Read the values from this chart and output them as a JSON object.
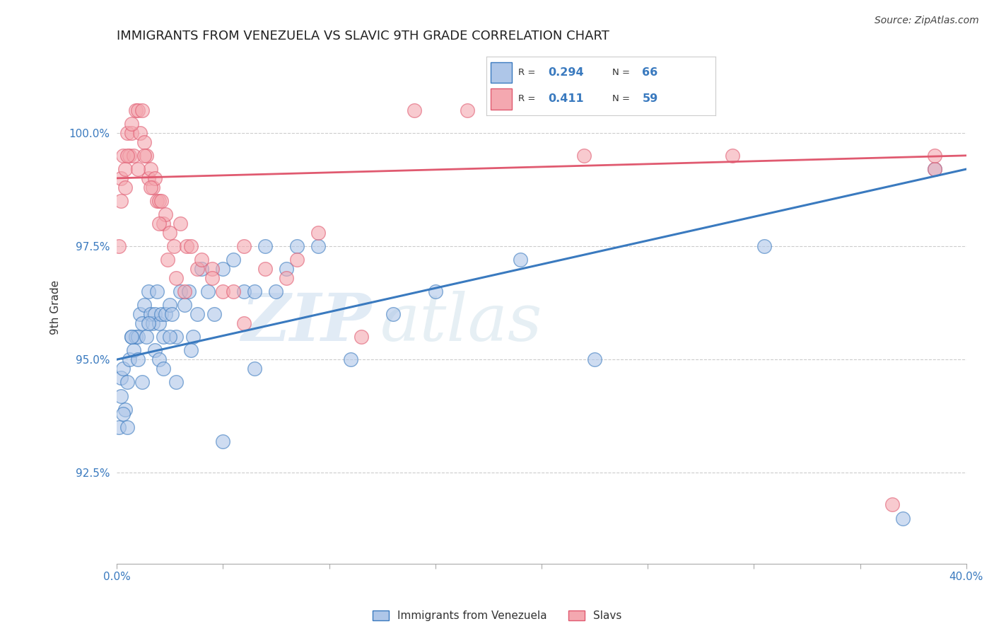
{
  "title": "IMMIGRANTS FROM VENEZUELA VS SLAVIC 9TH GRADE CORRELATION CHART",
  "source_text": "Source: ZipAtlas.com",
  "xlabel": "",
  "ylabel": "9th Grade",
  "xlim": [
    0.0,
    40.0
  ],
  "ylim": [
    90.5,
    101.8
  ],
  "yticks": [
    92.5,
    95.0,
    97.5,
    100.0
  ],
  "ytick_labels": [
    "92.5%",
    "95.0%",
    "97.5%",
    "100.0%"
  ],
  "xticks": [
    0.0,
    5.0,
    10.0,
    15.0,
    20.0,
    25.0,
    30.0,
    35.0,
    40.0
  ],
  "xtick_labels": [
    "0.0%",
    "",
    "",
    "",
    "",
    "",
    "",
    "",
    "40.0%"
  ],
  "blue_label": "Immigrants from Venezuela",
  "pink_label": "Slavs",
  "blue_R": 0.294,
  "blue_N": 66,
  "pink_R": 0.411,
  "pink_N": 59,
  "blue_color": "#aec6e8",
  "pink_color": "#f4a8b0",
  "blue_line_color": "#3a7abf",
  "pink_line_color": "#e05a70",
  "watermark_zip": "ZIP",
  "watermark_atlas": "atlas",
  "blue_x": [
    0.2,
    0.3,
    0.4,
    0.5,
    0.6,
    0.7,
    0.8,
    0.9,
    1.0,
    1.1,
    1.2,
    1.3,
    1.4,
    1.5,
    1.6,
    1.7,
    1.8,
    1.9,
    2.0,
    2.1,
    2.2,
    2.3,
    2.5,
    2.6,
    2.8,
    3.0,
    3.2,
    3.4,
    3.6,
    3.8,
    4.0,
    4.3,
    4.6,
    5.0,
    5.5,
    6.0,
    6.5,
    7.0,
    7.5,
    8.0,
    9.5,
    11.0,
    13.0,
    15.0,
    19.0,
    38.5
  ],
  "blue_y": [
    94.6,
    94.8,
    93.9,
    94.5,
    95.0,
    95.5,
    95.2,
    95.5,
    95.5,
    96.0,
    95.8,
    96.2,
    95.5,
    96.5,
    96.0,
    95.8,
    96.0,
    96.5,
    95.8,
    96.0,
    95.5,
    96.0,
    96.2,
    96.0,
    95.5,
    96.5,
    96.2,
    96.5,
    95.5,
    96.0,
    97.0,
    96.5,
    96.0,
    97.0,
    97.2,
    96.5,
    96.5,
    97.5,
    96.5,
    97.0,
    97.5,
    95.0,
    96.0,
    96.5,
    97.2,
    99.2
  ],
  "blue_x2": [
    0.1,
    0.2,
    0.3,
    0.5,
    0.7,
    1.0,
    1.2,
    1.5,
    1.8,
    2.0,
    2.2,
    2.5,
    2.8,
    3.5,
    5.0,
    6.5,
    8.5,
    22.5,
    30.5,
    37.0
  ],
  "blue_y2": [
    93.5,
    94.2,
    93.8,
    93.5,
    95.5,
    95.0,
    94.5,
    95.8,
    95.2,
    95.0,
    94.8,
    95.5,
    94.5,
    95.2,
    93.2,
    94.8,
    97.5,
    95.0,
    97.5,
    91.5
  ],
  "pink_x": [
    0.2,
    0.3,
    0.4,
    0.5,
    0.6,
    0.7,
    0.8,
    0.9,
    1.0,
    1.1,
    1.2,
    1.3,
    1.4,
    1.5,
    1.6,
    1.7,
    1.8,
    1.9,
    2.0,
    2.1,
    2.2,
    2.3,
    2.5,
    2.7,
    3.0,
    3.3,
    3.5,
    3.8,
    4.0,
    4.5,
    5.0,
    5.5,
    6.0,
    7.0,
    8.0,
    9.5,
    11.5,
    14.0,
    38.5
  ],
  "pink_y": [
    99.0,
    99.5,
    99.2,
    100.0,
    99.5,
    100.0,
    99.5,
    100.5,
    100.5,
    100.0,
    100.5,
    99.8,
    99.5,
    99.0,
    99.2,
    98.8,
    99.0,
    98.5,
    98.5,
    98.5,
    98.0,
    98.2,
    97.8,
    97.5,
    98.0,
    97.5,
    97.5,
    97.0,
    97.2,
    97.0,
    96.5,
    96.5,
    97.5,
    97.0,
    96.8,
    97.8,
    95.5,
    100.5,
    99.2
  ],
  "pink_x2": [
    0.1,
    0.2,
    0.4,
    0.5,
    0.7,
    1.0,
    1.3,
    1.6,
    2.0,
    2.4,
    2.8,
    3.2,
    4.5,
    6.0,
    8.5,
    16.5,
    22.0,
    29.0,
    36.5,
    38.5
  ],
  "pink_y2": [
    97.5,
    98.5,
    98.8,
    99.5,
    100.2,
    99.2,
    99.5,
    98.8,
    98.0,
    97.2,
    96.8,
    96.5,
    96.8,
    95.8,
    97.2,
    100.5,
    99.5,
    99.5,
    91.8,
    99.5
  ]
}
